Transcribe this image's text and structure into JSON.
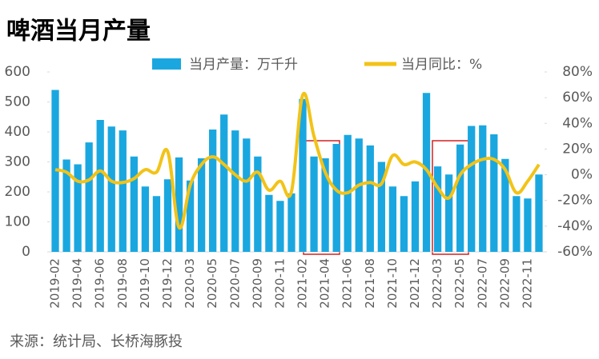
{
  "chart_data": {
    "type": "bar-line",
    "title": "啤酒当月产量",
    "source": "来源：统计局、长桥海豚投",
    "categories": [
      "2019-02",
      null,
      "2019-04",
      null,
      "2019-06",
      null,
      "2019-08",
      null,
      "2019-10",
      null,
      "2019-12",
      null,
      "2020-03",
      null,
      "2020-05",
      null,
      "2020-07",
      null,
      "2020-09",
      null,
      "2020-11",
      null,
      "2021-02",
      null,
      "2021-04",
      null,
      "2021-06",
      null,
      "2021-08",
      null,
      "2021-10",
      null,
      "2021-12",
      null,
      "2022-03",
      null,
      "2022-05",
      null,
      "2022-07",
      null,
      "2022-09",
      null,
      "2022-11",
      null
    ],
    "series": [
      {
        "name": "当月产量：万千升",
        "color": "#1aa7e0",
        "kind": "bar",
        "values": [
          540,
          308,
          292,
          365,
          440,
          418,
          405,
          318,
          218,
          186,
          242,
          315,
          238,
          312,
          408,
          458,
          405,
          378,
          318,
          190,
          170,
          195,
          510,
          318,
          312,
          360,
          390,
          378,
          355,
          300,
          218,
          186,
          235,
          530,
          285,
          258,
          358,
          420,
          422,
          392,
          310,
          186,
          178,
          258
        ]
      },
      {
        "name": "当月同比：%",
        "color": "#f2c318",
        "kind": "line",
        "axis": "y2",
        "values": [
          4,
          2,
          -5,
          -4,
          3,
          -5,
          -6,
          -3,
          4,
          2,
          18,
          -41,
          -8,
          8,
          14,
          8,
          0,
          -5,
          2,
          -12,
          -5,
          -13,
          62,
          30,
          2,
          -12,
          -14,
          -8,
          -6,
          -7,
          15,
          8,
          10,
          4,
          -10,
          -18,
          0,
          8,
          12,
          12,
          4,
          -14,
          -5,
          8
        ]
      }
    ],
    "ylim": [
      0,
      600
    ],
    "yticks": [
      0,
      100,
      200,
      300,
      400,
      500,
      600
    ],
    "y2lim": [
      -60,
      80
    ],
    "y2ticks": [
      {
        "value": -60,
        "label": "-60%"
      },
      {
        "value": -40,
        "label": "-40%"
      },
      {
        "value": -20,
        "label": "-20%"
      },
      {
        "value": 0,
        "label": "0%"
      },
      {
        "value": 20,
        "label": "20%"
      },
      {
        "value": 40,
        "label": "40%"
      },
      {
        "value": 60,
        "label": "60%"
      },
      {
        "value": 80,
        "label": "80%"
      }
    ]
  }
}
